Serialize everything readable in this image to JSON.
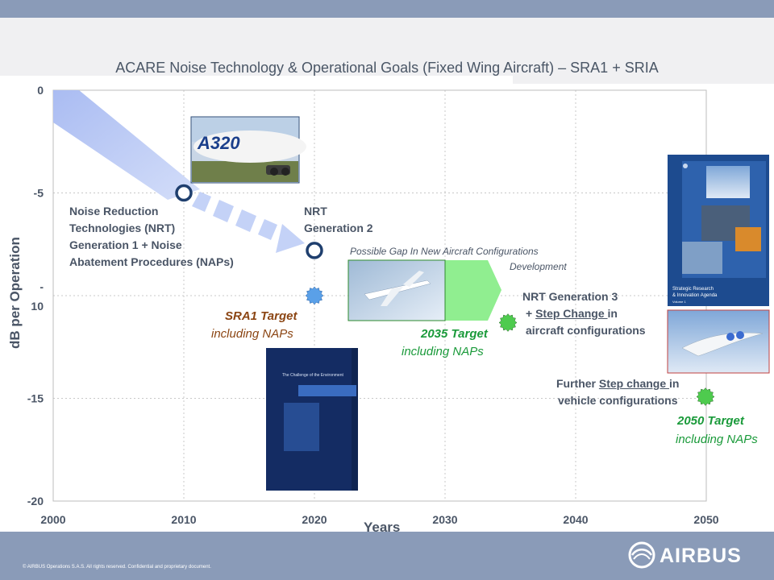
{
  "title": "ACARE  Noise Technology & Operational Goals (Fixed Wing Aircraft) – SRA1 + SRIA",
  "copyright": "© AIRBUS Operations S.A.S. All rights reserved. Confidential and proprietary document.",
  "logo_text": "AIRBUS",
  "annotations": {
    "nrt1_lines": [
      "Noise Reduction",
      "Technologies (NRT)",
      "Generation 1 + Noise",
      "Abatement Procedures (NAPs)"
    ],
    "nrt2_lines": [
      "NRT",
      "Generation 2"
    ],
    "gap_line1": "Possible Gap  In New Aircraft  Configurations",
    "gap_line2": "Development",
    "nrt3_line1": "NRT Generation 3",
    "nrt3_line2_prefix": "+ ",
    "nrt3_line2_link": "Step  Change ",
    "nrt3_line2_suffix": "in",
    "nrt3_line3": "aircraft configurations",
    "further_prefix": "Further ",
    "further_link": "Step change ",
    "further_suffix": "in",
    "further_line2": "vehicle configurations",
    "sra1_target": "SRA1 Target",
    "sra1_sub": "including NAPs",
    "t2035_target": "2035 Target",
    "t2035_sub": "including NAPs",
    "t2050_target": "2050 Target",
    "t2050_sub": "including NAPs"
  },
  "images": {
    "a320_text": "A320",
    "book1_title": "The Challenge of the Environment",
    "book2_title_line1": "Strategic Research",
    "book2_title_line2": "& Innovation Agenda",
    "book2_volume": "Volume 1"
  },
  "colors": {
    "band": "#c4d2f7",
    "ring": "#1f3f6e",
    "sra1_marker": "#5aa0e8",
    "green_marker": "#4ecb4e",
    "gap_arrow": "#90ee90",
    "grid": "#c8c8c8",
    "axis_text": "#4a5566"
  },
  "chart_data": {
    "type": "line",
    "xlabel": "Years",
    "ylabel": "dB per Operation",
    "xlim": [
      2000,
      2050
    ],
    "ylim": [
      -20,
      0
    ],
    "x_ticks": [
      "2000",
      "2010",
      "2020",
      "2030",
      "2040",
      "2050"
    ],
    "y_ticks": [
      "0",
      "-5",
      "-\n10",
      "-15",
      "-20"
    ],
    "grid": true,
    "band_path": [
      [
        2000,
        0
      ],
      [
        2020,
        -7.8
      ]
    ],
    "milestones": [
      {
        "label": "NRT Generation 1",
        "x": 2010,
        "y": -5,
        "marker": "ring"
      },
      {
        "label": "NRT Generation 2",
        "x": 2020,
        "y": -7.8,
        "marker": "ring"
      },
      {
        "label": "SRA1 Target",
        "x": 2020,
        "y": -10,
        "marker": "blue-star"
      },
      {
        "label": "2035 Target",
        "x": 2035,
        "y": -11,
        "marker": "green-star"
      },
      {
        "label": "2050 Target",
        "x": 2050,
        "y": -15,
        "marker": "green-star"
      }
    ]
  }
}
